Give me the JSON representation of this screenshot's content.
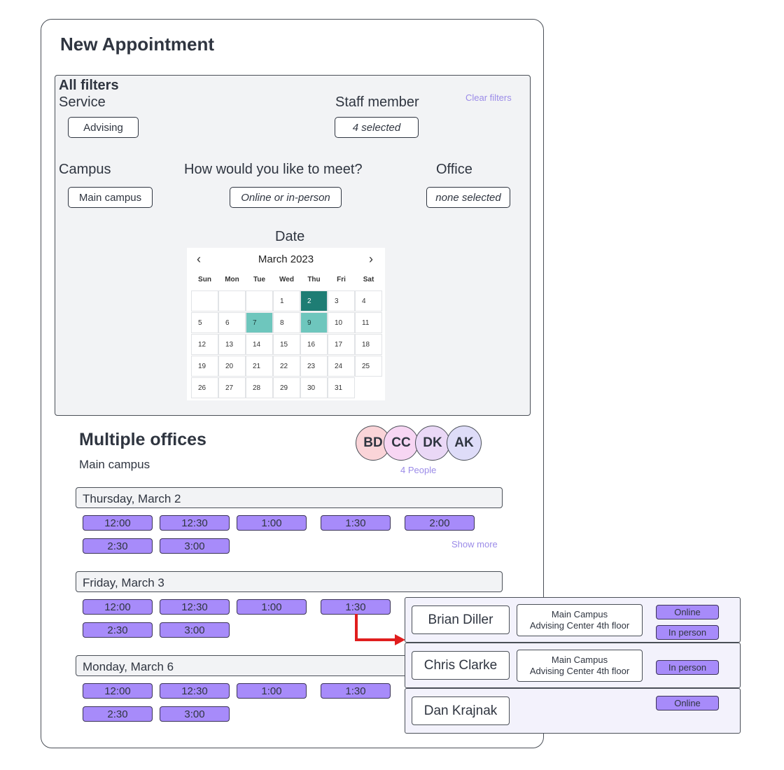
{
  "title": "New Appointment",
  "filters": {
    "heading": "All filters",
    "clear_label": "Clear filters",
    "service": {
      "label": "Service",
      "value": "Advising"
    },
    "staff": {
      "label": "Staff member",
      "value": "4 selected"
    },
    "campus": {
      "label": "Campus",
      "value": "Main campus"
    },
    "meet": {
      "label": "How would you like to meet?",
      "value": "Online or in-person"
    },
    "office": {
      "label": "Office",
      "value": "none selected"
    },
    "date": {
      "label": "Date"
    }
  },
  "calendar": {
    "month": "March 2023",
    "prev_icon": "‹",
    "next_icon": "›",
    "weekdays": [
      "Sun",
      "Mon",
      "Tue",
      "Wed",
      "Thu",
      "Fri",
      "Sat"
    ],
    "first_weekday_index": 3,
    "days_in_month": 31,
    "selected_day": 2,
    "highlighted_days": [
      7,
      9
    ],
    "colors": {
      "selected": "#1e7d74",
      "highlighted": "#6ec6bd"
    }
  },
  "offices": {
    "title": "Multiple offices",
    "subtitle": "Main campus",
    "avatars": [
      {
        "initials": "BD",
        "color": "#fad4d8"
      },
      {
        "initials": "CC",
        "color": "#f7d6f3"
      },
      {
        "initials": "DK",
        "color": "#ead8f6"
      },
      {
        "initials": "AK",
        "color": "#dedcf8"
      }
    ],
    "people_label": "4 People",
    "show_more": "Show more",
    "days": [
      {
        "label": "Thursday, March 2",
        "slots": [
          "12:00",
          "12:30",
          "1:00",
          "1:30",
          "2:00",
          "2:30",
          "3:00"
        ]
      },
      {
        "label": "Friday, March 3",
        "slots": [
          "12:00",
          "12:30",
          "1:00",
          "1:30",
          "2:30",
          "3:00"
        ]
      },
      {
        "label": "Monday, March 6",
        "slots": [
          "12:00",
          "12:30",
          "1:00",
          "1:30",
          "2:30",
          "3:00"
        ]
      }
    ],
    "slot_color": "#a78bfa"
  },
  "staff_popup": [
    {
      "name": "Brian Diller",
      "location_line1": "Main Campus",
      "location_line2": "Advising Center 4th floor",
      "modes": [
        "Online",
        "In person"
      ]
    },
    {
      "name": "Chris Clarke",
      "location_line1": "Main Campus",
      "location_line2": "Advising Center 4th floor",
      "modes": [
        "In person"
      ]
    },
    {
      "name": "Dan Krajnak",
      "location_line1": "",
      "location_line2": "",
      "modes": [
        "Online"
      ]
    }
  ],
  "arrow_color": "#e01e1e"
}
